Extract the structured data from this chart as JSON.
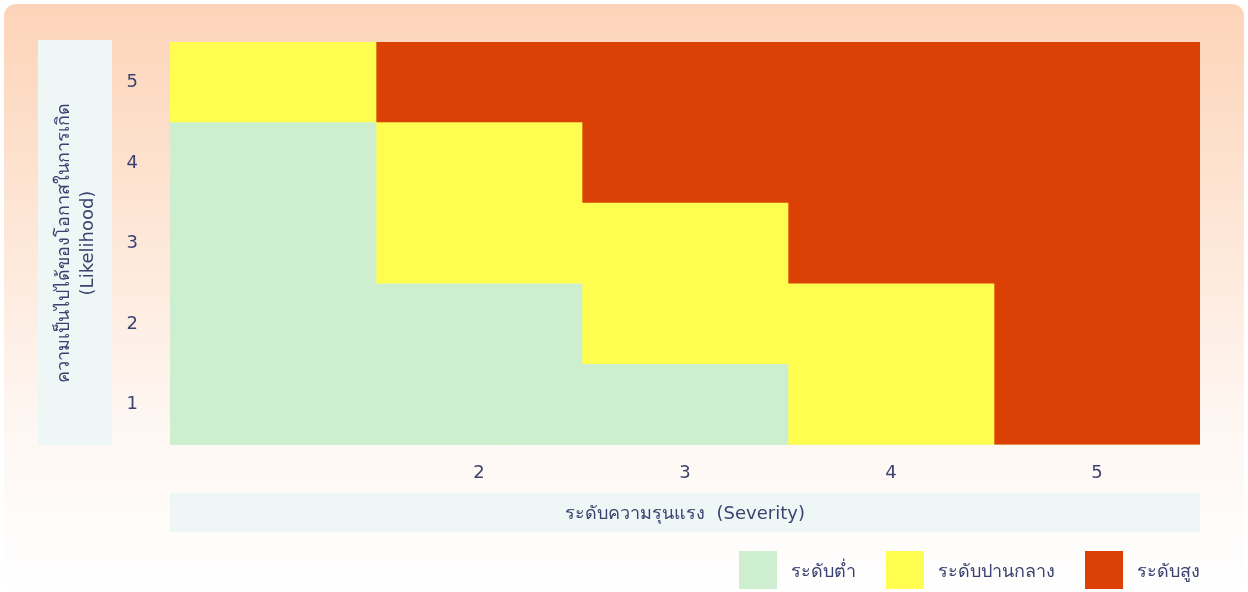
{
  "chart_data": {
    "type": "bar",
    "stacked": true,
    "xlabel": "ระดับความรุนแรง  (Severity)",
    "ylabel": "ความเป็นไปได้ของโอกาสในการเกิด\n(Likelihood)",
    "categories": [
      null,
      "2",
      "3",
      "4",
      "5"
    ],
    "ylim": [
      0,
      5
    ],
    "yticks": [
      {
        "value": 0.5,
        "label": "1"
      },
      {
        "value": 1.5,
        "label": "2"
      },
      {
        "value": 2.5,
        "label": "3"
      },
      {
        "value": 3.5,
        "label": "4"
      },
      {
        "value": 4.5,
        "label": "5"
      }
    ],
    "series": [
      {
        "name": "ระดับต่ำ",
        "color": "#cdefcf",
        "values": [
          4,
          2,
          1,
          0,
          0
        ]
      },
      {
        "name": "ระดับปานกลาง",
        "color": "#fffd50",
        "values": [
          1,
          2,
          2,
          2,
          0
        ]
      },
      {
        "name": "ระดับสูง",
        "color": "#db4104",
        "values": [
          0,
          1,
          2,
          3,
          5
        ]
      }
    ],
    "legend": "bottom right"
  }
}
